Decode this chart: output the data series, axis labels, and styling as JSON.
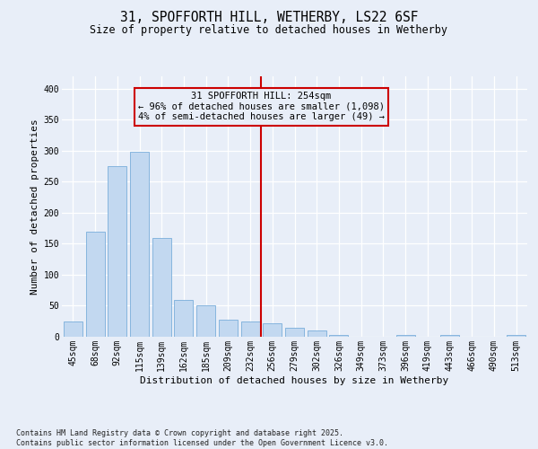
{
  "title_line1": "31, SPOFFORTH HILL, WETHERBY, LS22 6SF",
  "title_line2": "Size of property relative to detached houses in Wetherby",
  "xlabel": "Distribution of detached houses by size in Wetherby",
  "ylabel": "Number of detached properties",
  "categories": [
    "45sqm",
    "68sqm",
    "92sqm",
    "115sqm",
    "139sqm",
    "162sqm",
    "185sqm",
    "209sqm",
    "232sqm",
    "256sqm",
    "279sqm",
    "302sqm",
    "326sqm",
    "349sqm",
    "373sqm",
    "396sqm",
    "419sqm",
    "443sqm",
    "466sqm",
    "490sqm",
    "513sqm"
  ],
  "values": [
    25,
    170,
    275,
    298,
    160,
    60,
    50,
    28,
    25,
    22,
    15,
    10,
    3,
    0,
    0,
    3,
    0,
    3,
    0,
    0,
    3
  ],
  "bar_color": "#c2d8f0",
  "bar_edge_color": "#7aaedb",
  "red_line_x": 8.5,
  "red_line_color": "#cc0000",
  "annotation_title": "31 SPOFFORTH HILL: 254sqm",
  "annotation_line1": "← 96% of detached houses are smaller (1,098)",
  "annotation_line2": "4% of semi-detached houses are larger (49) →",
  "annotation_box_edgecolor": "#cc0000",
  "background_color": "#e8eef8",
  "ylim": [
    0,
    420
  ],
  "yticks": [
    0,
    50,
    100,
    150,
    200,
    250,
    300,
    350,
    400
  ],
  "footer_line1": "Contains HM Land Registry data © Crown copyright and database right 2025.",
  "footer_line2": "Contains public sector information licensed under the Open Government Licence v3.0.",
  "title_fontsize": 10.5,
  "subtitle_fontsize": 8.5,
  "axis_label_fontsize": 8,
  "tick_fontsize": 7,
  "annotation_fontsize": 7.5,
  "footer_fontsize": 6
}
